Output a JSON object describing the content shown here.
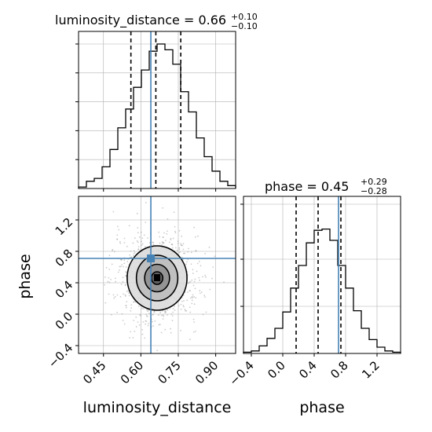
{
  "chart_data": [
    {
      "type": "histogram",
      "panel": "luminosity_distance",
      "title_parameter": "luminosity_distance",
      "title_value": "0.66",
      "title_upper": "+0.10",
      "title_lower": "−0.10",
      "xlim": [
        0.35,
        0.98
      ],
      "bins": [
        0.35,
        0.3815,
        0.413,
        0.4445,
        0.476,
        0.5075,
        0.539,
        0.5705,
        0.602,
        0.6335,
        0.665,
        0.6965,
        0.728,
        0.7595,
        0.791,
        0.8225,
        0.854,
        0.8855,
        0.917,
        0.9485,
        0.98
      ],
      "counts": [
        0.01,
        0.05,
        0.07,
        0.15,
        0.27,
        0.42,
        0.55,
        0.7,
        0.82,
        0.95,
        1.0,
        0.96,
        0.86,
        0.67,
        0.53,
        0.35,
        0.22,
        0.12,
        0.05,
        0.02
      ],
      "quantiles": [
        0.56,
        0.66,
        0.76
      ],
      "truth": 0.64,
      "grid": true
    },
    {
      "type": "histogram",
      "panel": "phase",
      "title_parameter": "phase",
      "title_value": "0.45",
      "title_upper": "+0.29",
      "title_lower": "−0.28",
      "xlim": [
        -0.5,
        1.5
      ],
      "bins": [
        -0.5,
        -0.4,
        -0.3,
        -0.2,
        -0.1,
        0.0,
        0.1,
        0.2,
        0.3,
        0.4,
        0.5,
        0.6,
        0.7,
        0.8,
        0.9,
        1.0,
        1.1,
        1.2,
        1.3,
        1.4,
        1.5
      ],
      "counts": [
        0.01,
        0.02,
        0.06,
        0.12,
        0.2,
        0.33,
        0.52,
        0.7,
        0.88,
        0.98,
        0.99,
        0.9,
        0.7,
        0.52,
        0.34,
        0.2,
        0.11,
        0.05,
        0.02,
        0.01
      ],
      "quantiles": [
        0.17,
        0.45,
        0.74
      ],
      "truth": 0.71,
      "grid": true
    },
    {
      "type": "contour",
      "panel": "luminosity_distance vs phase",
      "xlim": [
        0.35,
        0.98
      ],
      "ylim": [
        -0.5,
        1.5
      ],
      "center": [
        0.665,
        0.46
      ],
      "contour_levels": [
        {
          "rx": 0.023,
          "ry": 0.08
        },
        {
          "rx": 0.05,
          "ry": 0.175
        },
        {
          "rx": 0.083,
          "ry": 0.29
        },
        {
          "rx": 0.12,
          "ry": 0.41
        }
      ],
      "truth": [
        0.64,
        0.71
      ],
      "grid": true
    }
  ],
  "axes": {
    "xlabel_left": "luminosity_distance",
    "xlabel_right": "phase",
    "ylabel_left": "phase",
    "bottom_left_xticks": [
      "0.45",
      "0.60",
      "0.75",
      "0.90"
    ],
    "bottom_left_xtick_values": [
      0.45,
      0.6,
      0.75,
      0.9
    ],
    "bottom_right_xticks": [
      "−0.4",
      "0.0",
      "0.4",
      "0.8",
      "1.2"
    ],
    "bottom_right_xtick_values": [
      -0.4,
      0.0,
      0.4,
      0.8,
      1.2
    ],
    "left_yticks": [
      "1.2",
      "0.8",
      "0.4",
      "0.0",
      "−0.4"
    ],
    "left_ytick_values": [
      1.2,
      0.8,
      0.4,
      0.0,
      -0.4
    ]
  },
  "colors": {
    "line": "#000000",
    "truth": "#4682b4",
    "grid": "#b0b0b0",
    "scatter": "#9a9a9a"
  }
}
